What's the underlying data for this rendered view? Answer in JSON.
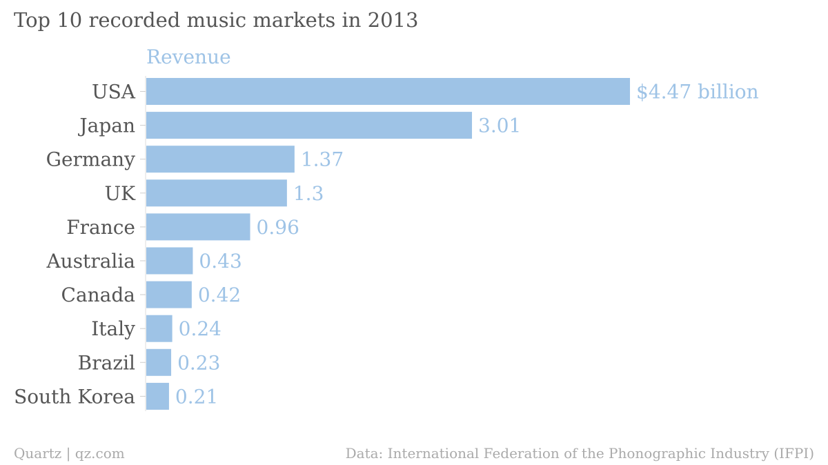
{
  "chart_data": {
    "type": "bar",
    "orientation": "horizontal",
    "title": "Top 10 recorded music markets in 2013",
    "series_label": "Revenue",
    "categories": [
      "USA",
      "Japan",
      "Germany",
      "UK",
      "France",
      "Australia",
      "Canada",
      "Italy",
      "Brazil",
      "South Korea"
    ],
    "values": [
      4.47,
      3.01,
      1.37,
      1.3,
      0.96,
      0.43,
      0.42,
      0.24,
      0.23,
      0.21
    ],
    "value_labels": [
      "$4.47 billion",
      "3.01",
      "1.37",
      "1.3",
      "0.96",
      "0.43",
      "0.42",
      "0.24",
      "0.23",
      "0.21"
    ],
    "xlim": [
      0,
      4.47
    ],
    "grid": false,
    "bar_color": "#9ec3e6"
  },
  "footer": {
    "source_left": "Quartz | qz.com",
    "source_right": "Data: International Federation of the Phonographic Industry (IFPI)"
  }
}
